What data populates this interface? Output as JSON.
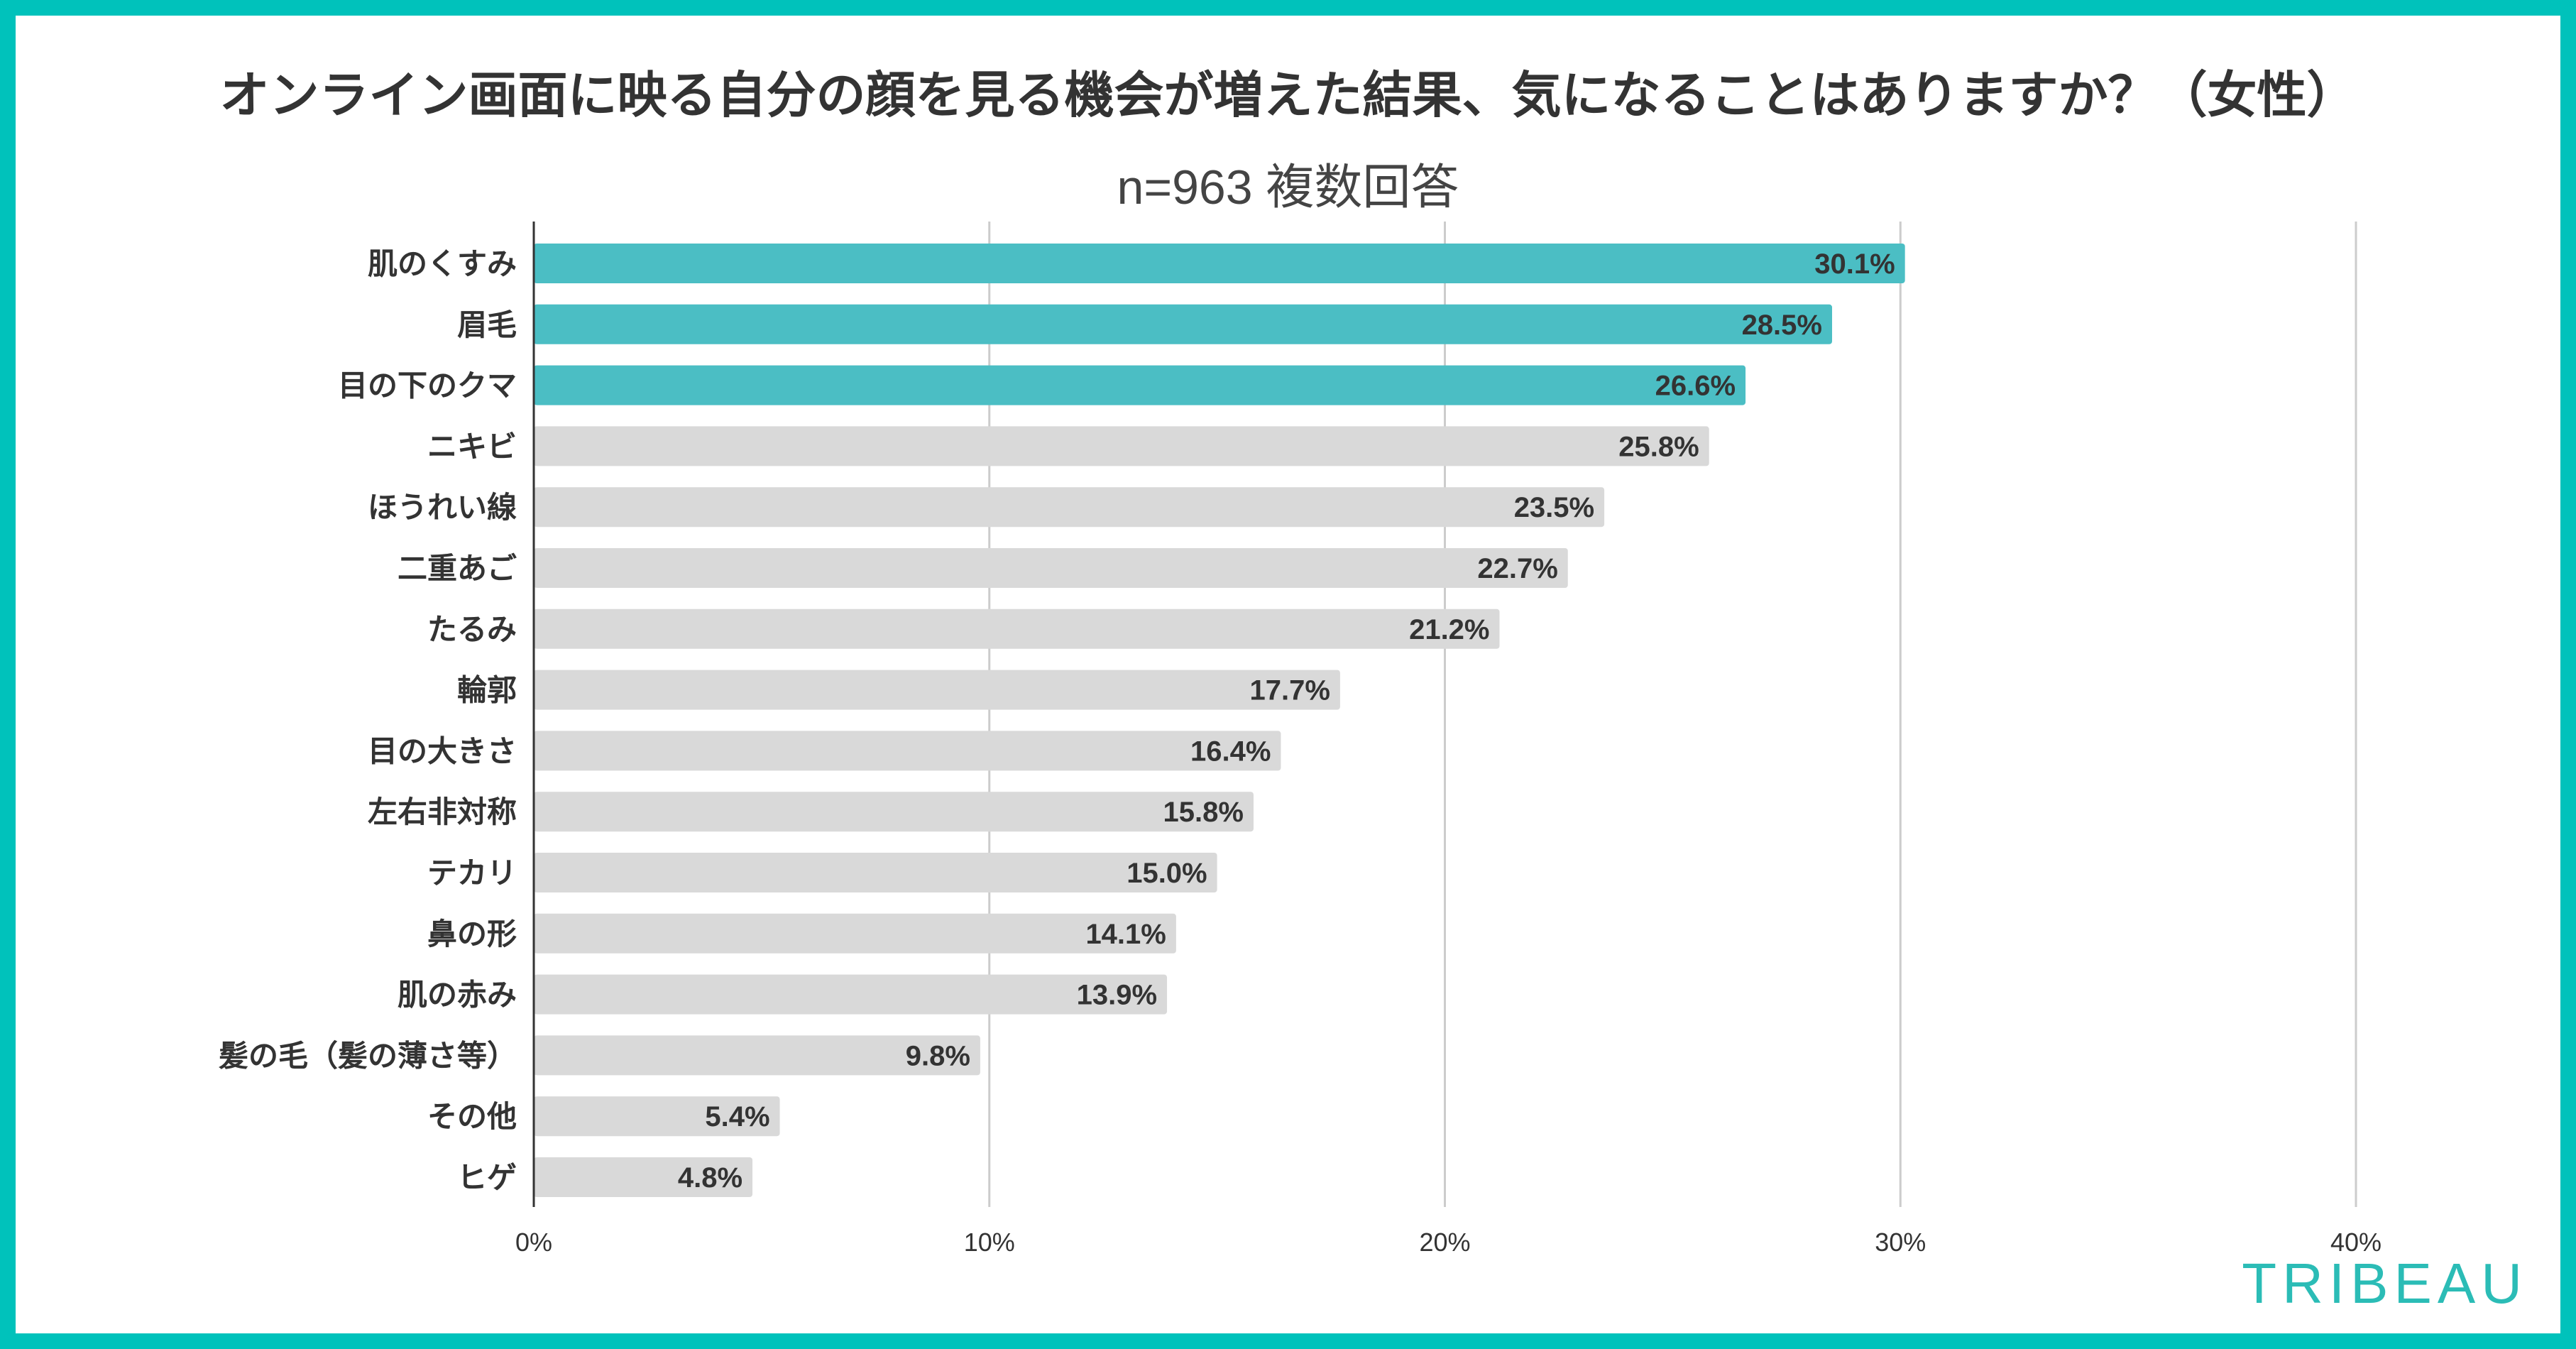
{
  "chart_data": {
    "type": "bar",
    "orientation": "horizontal",
    "title": "オンライン画面に映る自分の顔を見る機会が増えた結果、気になることはありますか？（女性）",
    "subtitle": "n=963 複数回答",
    "categories": [
      "肌のくすみ",
      "眉毛",
      "目の下のクマ",
      "ニキビ",
      "ほうれい線",
      "二重あご",
      "たるみ",
      "輪郭",
      "目の大きさ",
      "左右非対称",
      "テカリ",
      "鼻の形",
      "肌の赤み",
      "髪の毛（髪の薄さ等）",
      "その他",
      "ヒゲ"
    ],
    "values": [
      30.1,
      28.5,
      26.6,
      25.8,
      23.5,
      22.7,
      21.2,
      17.7,
      16.4,
      15.8,
      15.0,
      14.1,
      13.9,
      9.8,
      5.4,
      4.8
    ],
    "value_labels": [
      "30.1%",
      "28.5%",
      "26.6%",
      "25.8%",
      "23.5%",
      "22.7%",
      "21.2%",
      "17.7%",
      "16.4%",
      "15.8%",
      "15.0%",
      "14.1%",
      "13.9%",
      "9.8%",
      "5.4%",
      "4.8%"
    ],
    "highlighted_count": 3,
    "xlim": [
      0,
      40
    ],
    "xticks": [
      0,
      10,
      20,
      30,
      40
    ],
    "xtick_labels": [
      "0%",
      "10%",
      "20%",
      "30%",
      "40%"
    ],
    "grid": true,
    "xlabel": "",
    "ylabel": ""
  },
  "colors": {
    "border": "#00c2bb",
    "highlight_bar": "#4bbec4",
    "default_bar": "#d9d9d9",
    "grid": "#cccccc",
    "axis": "#333333",
    "logo": "#2bbcb6"
  },
  "brand": {
    "logo_text": "TRIBEAU"
  }
}
